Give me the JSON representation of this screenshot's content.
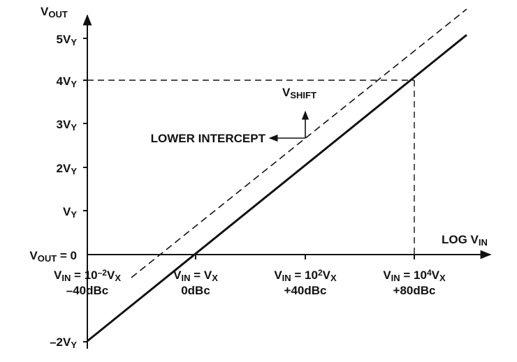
{
  "axes": {
    "y_label": [
      {
        "text": "V"
      },
      {
        "text": "OUT",
        "sub": true
      }
    ],
    "x_label": [
      {
        "text": "LOG V"
      },
      {
        "text": "IN",
        "sub": true
      }
    ]
  },
  "y_ticks": [
    [
      {
        "text": "5V"
      },
      {
        "text": "Y",
        "sub": true
      }
    ],
    [
      {
        "text": "4V"
      },
      {
        "text": "Y",
        "sub": true
      }
    ],
    [
      {
        "text": "3V"
      },
      {
        "text": "Y",
        "sub": true
      }
    ],
    [
      {
        "text": "2V"
      },
      {
        "text": "Y",
        "sub": true
      }
    ],
    [
      {
        "text": "V"
      },
      {
        "text": "Y",
        "sub": true
      }
    ],
    [
      {
        "text": "V"
      },
      {
        "text": "OUT",
        "sub": true
      },
      {
        "text": " = 0"
      }
    ],
    [
      {
        "text": "–2V"
      },
      {
        "text": "Y",
        "sub": true
      }
    ]
  ],
  "x_ticks": [
    {
      "line1": [
        {
          "text": "V"
        },
        {
          "text": "IN",
          "sub": true
        },
        {
          "text": " = 10"
        },
        {
          "text": "–2",
          "sup": true
        },
        {
          "text": "V"
        },
        {
          "text": "X",
          "sub": true
        }
      ],
      "line2": "–40dBc"
    },
    {
      "line1": [
        {
          "text": "V"
        },
        {
          "text": "IN",
          "sub": true
        },
        {
          "text": " = V"
        },
        {
          "text": "X",
          "sub": true
        }
      ],
      "line2": "0dBc"
    },
    {
      "line1": [
        {
          "text": "V"
        },
        {
          "text": "IN",
          "sub": true
        },
        {
          "text": " = 10"
        },
        {
          "text": "2",
          "sup": true
        },
        {
          "text": "V"
        },
        {
          "text": "X",
          "sub": true
        }
      ],
      "line2": "+40dBc"
    },
    {
      "line1": [
        {
          "text": "V"
        },
        {
          "text": "IN",
          "sub": true
        },
        {
          "text": " = 10"
        },
        {
          "text": "4",
          "sup": true
        },
        {
          "text": "V"
        },
        {
          "text": "X",
          "sub": true
        }
      ],
      "line2": "+80dBc"
    }
  ],
  "annotations": {
    "shift": [
      {
        "text": "V"
      },
      {
        "text": "SHIFT",
        "sub": true
      }
    ],
    "lower_intercept": [
      {
        "text": "LOWER INTERCEPT"
      }
    ]
  }
}
